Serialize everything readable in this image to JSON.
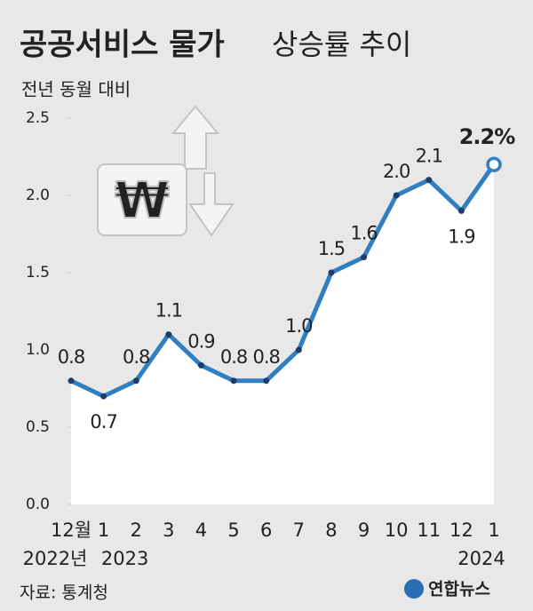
{
  "chart_data": {
    "type": "line",
    "title": "공공서비스 물가",
    "title_suffix": "상승률 추이",
    "subtitle": "전년 동월 대비",
    "categories": [
      "12월",
      "1",
      "2",
      "3",
      "4",
      "5",
      "6",
      "7",
      "8",
      "9",
      "10",
      "11",
      "12",
      "1"
    ],
    "year_labels": [
      "2022년",
      "2023",
      null,
      null,
      null,
      null,
      null,
      null,
      null,
      null,
      null,
      null,
      null,
      "2024"
    ],
    "values": [
      0.8,
      0.7,
      0.8,
      1.1,
      0.9,
      0.8,
      0.8,
      1.0,
      1.5,
      1.6,
      2.0,
      2.1,
      1.9,
      2.2
    ],
    "value_labels": [
      "0.8",
      "0.7",
      "0.8",
      "1.1",
      "0.9",
      "0.8",
      "0.8",
      "1.0",
      "1.5",
      "1.6",
      "2.0",
      "2.1",
      "1.9",
      "2.2%"
    ],
    "color": "#2f7fc1",
    "ylim": [
      0,
      2.5
    ],
    "yticks": [
      {
        "value": 0,
        "label": "0.0"
      },
      0.5,
      {
        "value": 1,
        "label": "1.0"
      },
      1.5,
      {
        "value": 2,
        "label": "2.0"
      },
      2.5
    ],
    "grid": false,
    "source": "자료: 통계청",
    "logo": "연합뉴스"
  }
}
